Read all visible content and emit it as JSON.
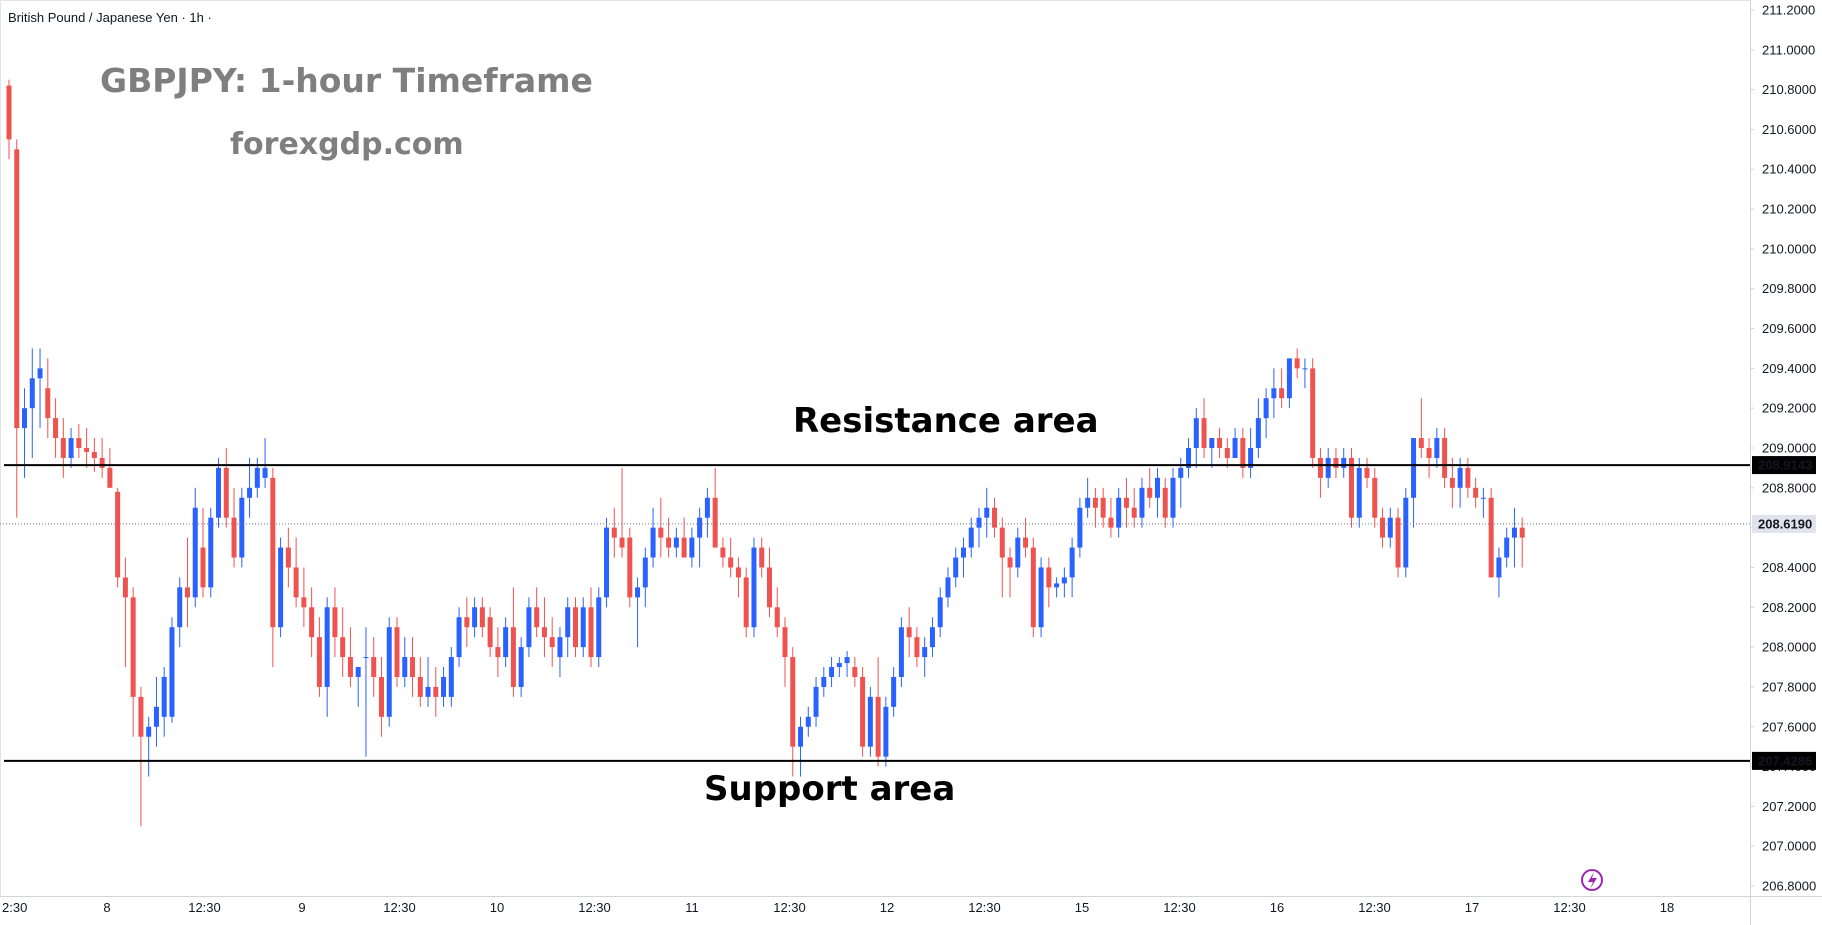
{
  "header": {
    "symbol_title": "British Pound / Japanese Yen · 1h ·",
    "chart_title": "GBPJPY: 1-hour Timeframe",
    "site": "forexgdp.com"
  },
  "chart_data": {
    "type": "candlestick",
    "title": "GBPJPY: 1-hour Timeframe",
    "ylim": [
      206.75,
      211.25
    ],
    "y_ticks": [
      "211.2000",
      "211.0000",
      "210.8000",
      "210.6000",
      "210.4000",
      "210.2000",
      "210.0000",
      "209.8000",
      "209.6000",
      "209.4000",
      "209.2000",
      "209.0000",
      "208.8000",
      "208.6000",
      "208.4000",
      "208.2000",
      "208.0000",
      "207.8000",
      "207.6000",
      "207.4000",
      "207.2000",
      "207.0000",
      "206.8000"
    ],
    "x_ticks": [
      "2:30",
      "8",
      "12:30",
      "9",
      "12:30",
      "10",
      "12:30",
      "11",
      "12:30",
      "12",
      "12:30",
      "15",
      "12:30",
      "16",
      "12:30",
      "17",
      "12:30",
      "18"
    ],
    "grid": false,
    "levels": [
      {
        "name": "Resistance area",
        "value": 208.9143,
        "label": "208.9143"
      },
      {
        "name": "Support area",
        "value": 207.4286,
        "label": "207.4286"
      }
    ],
    "current_price": {
      "value": 208.619,
      "label": "208.6190"
    },
    "colors": {
      "up": "#2962ff",
      "down": "#ef5350",
      "level": "#000000",
      "current": "#787b86"
    },
    "candles": [
      [
        210.82,
        210.85,
        210.45,
        210.55
      ],
      [
        210.5,
        210.55,
        208.65,
        209.1
      ],
      [
        209.1,
        209.3,
        208.85,
        209.2
      ],
      [
        209.2,
        209.5,
        208.95,
        209.35
      ],
      [
        209.35,
        209.5,
        209.1,
        209.4
      ],
      [
        209.3,
        209.45,
        209.05,
        209.15
      ],
      [
        209.15,
        209.25,
        208.95,
        209.05
      ],
      [
        209.05,
        209.15,
        208.85,
        208.95
      ],
      [
        208.95,
        209.1,
        208.9,
        209.05
      ],
      [
        209.05,
        209.12,
        208.95,
        209.0
      ],
      [
        209.0,
        209.1,
        208.9,
        208.98
      ],
      [
        208.98,
        209.05,
        208.88,
        208.95
      ],
      [
        208.95,
        209.05,
        208.85,
        208.9
      ],
      [
        208.9,
        209.0,
        208.8,
        208.8
      ],
      [
        208.78,
        208.8,
        208.3,
        208.35
      ],
      [
        208.35,
        208.45,
        207.9,
        208.25
      ],
      [
        208.25,
        208.3,
        207.55,
        207.75
      ],
      [
        207.75,
        207.8,
        207.1,
        207.55
      ],
      [
        207.55,
        207.65,
        207.35,
        207.6
      ],
      [
        207.6,
        207.85,
        207.5,
        207.7
      ],
      [
        207.65,
        207.9,
        207.55,
        207.85
      ],
      [
        207.65,
        208.15,
        207.62,
        208.1
      ],
      [
        208.1,
        208.35,
        208.0,
        208.3
      ],
      [
        208.3,
        208.55,
        208.1,
        208.25
      ],
      [
        208.25,
        208.8,
        208.2,
        208.7
      ],
      [
        208.5,
        208.7,
        208.25,
        208.3
      ],
      [
        208.3,
        208.7,
        208.25,
        208.65
      ],
      [
        208.65,
        208.95,
        208.6,
        208.9
      ],
      [
        208.9,
        209.0,
        208.6,
        208.65
      ],
      [
        208.65,
        208.8,
        208.4,
        208.45
      ],
      [
        208.45,
        208.8,
        208.4,
        208.75
      ],
      [
        208.75,
        208.95,
        208.65,
        208.8
      ],
      [
        208.8,
        208.95,
        208.75,
        208.9
      ],
      [
        208.85,
        209.05,
        208.8,
        208.9
      ],
      [
        208.85,
        208.9,
        207.9,
        208.1
      ],
      [
        208.1,
        208.55,
        208.05,
        208.5
      ],
      [
        208.5,
        208.6,
        208.3,
        208.4
      ],
      [
        208.4,
        208.55,
        208.2,
        208.25
      ],
      [
        208.25,
        208.4,
        208.1,
        208.2
      ],
      [
        208.2,
        208.3,
        207.95,
        208.05
      ],
      [
        208.05,
        208.15,
        207.75,
        207.8
      ],
      [
        207.8,
        208.25,
        207.65,
        208.2
      ],
      [
        208.2,
        208.3,
        207.95,
        208.05
      ],
      [
        208.05,
        208.2,
        207.85,
        207.95
      ],
      [
        207.95,
        208.1,
        207.8,
        207.85
      ],
      [
        207.85,
        207.9,
        207.7,
        207.9
      ],
      [
        207.95,
        208.1,
        207.45,
        207.95
      ],
      [
        207.95,
        208.05,
        207.75,
        207.85
      ],
      [
        207.85,
        207.95,
        207.55,
        207.65
      ],
      [
        207.65,
        208.15,
        207.6,
        208.1
      ],
      [
        208.1,
        208.15,
        207.8,
        207.85
      ],
      [
        207.85,
        208.05,
        207.8,
        207.95
      ],
      [
        207.95,
        208.05,
        207.75,
        207.85
      ],
      [
        207.85,
        207.95,
        207.7,
        207.75
      ],
      [
        207.75,
        207.95,
        207.7,
        207.8
      ],
      [
        207.8,
        207.9,
        207.65,
        207.75
      ],
      [
        207.75,
        207.9,
        207.7,
        207.85
      ],
      [
        207.75,
        208.0,
        207.7,
        207.95
      ],
      [
        207.95,
        208.2,
        207.9,
        208.15
      ],
      [
        208.15,
        208.25,
        208.0,
        208.1
      ],
      [
        208.1,
        208.25,
        208.05,
        208.2
      ],
      [
        208.2,
        208.25,
        208.05,
        208.1
      ],
      [
        208.15,
        208.2,
        207.95,
        208.0
      ],
      [
        208.0,
        208.1,
        207.85,
        207.95
      ],
      [
        207.95,
        208.15,
        207.9,
        208.1
      ],
      [
        208.1,
        208.3,
        207.75,
        207.8
      ],
      [
        207.8,
        208.05,
        207.75,
        208.0
      ],
      [
        208.0,
        208.25,
        207.95,
        208.2
      ],
      [
        208.2,
        208.3,
        208.05,
        208.1
      ],
      [
        208.1,
        208.25,
        207.95,
        208.05
      ],
      [
        208.05,
        208.15,
        207.9,
        208.0
      ],
      [
        207.95,
        208.1,
        207.85,
        208.05
      ],
      [
        208.05,
        208.25,
        207.95,
        208.2
      ],
      [
        208.2,
        208.25,
        207.95,
        208.0
      ],
      [
        208.0,
        208.25,
        207.95,
        208.2
      ],
      [
        208.2,
        208.3,
        207.9,
        207.95
      ],
      [
        207.95,
        208.3,
        207.9,
        208.25
      ],
      [
        208.25,
        208.65,
        208.2,
        208.6
      ],
      [
        208.6,
        208.7,
        208.45,
        208.55
      ],
      [
        208.55,
        208.9,
        208.45,
        208.5
      ],
      [
        208.55,
        208.6,
        208.2,
        208.25
      ],
      [
        208.25,
        208.35,
        208.0,
        208.3
      ],
      [
        208.3,
        208.5,
        208.2,
        208.45
      ],
      [
        208.45,
        208.7,
        208.4,
        208.6
      ],
      [
        208.6,
        208.75,
        208.45,
        208.55
      ],
      [
        208.55,
        208.65,
        208.45,
        208.5
      ],
      [
        208.5,
        208.6,
        208.45,
        208.55
      ],
      [
        208.55,
        208.65,
        208.45,
        208.45
      ],
      [
        208.45,
        208.6,
        208.4,
        208.55
      ],
      [
        208.55,
        208.7,
        208.4,
        208.65
      ],
      [
        208.65,
        208.8,
        208.55,
        208.75
      ],
      [
        208.75,
        208.9,
        208.5,
        208.5
      ],
      [
        208.5,
        208.55,
        208.4,
        208.45
      ],
      [
        208.45,
        208.55,
        208.35,
        208.4
      ],
      [
        208.4,
        208.45,
        208.25,
        208.35
      ],
      [
        208.35,
        208.4,
        208.05,
        208.1
      ],
      [
        208.1,
        208.55,
        208.05,
        208.5
      ],
      [
        208.5,
        208.55,
        208.35,
        208.4
      ],
      [
        208.4,
        208.5,
        208.15,
        208.2
      ],
      [
        208.2,
        208.3,
        208.05,
        208.1
      ],
      [
        208.1,
        208.15,
        207.8,
        207.95
      ],
      [
        207.95,
        208.0,
        207.35,
        207.5
      ],
      [
        207.5,
        207.65,
        207.35,
        207.6
      ],
      [
        207.6,
        207.7,
        207.55,
        207.65
      ],
      [
        207.65,
        207.85,
        207.6,
        207.8
      ],
      [
        207.8,
        207.9,
        207.75,
        207.85
      ],
      [
        207.85,
        207.95,
        207.8,
        207.9
      ],
      [
        207.9,
        207.95,
        207.85,
        207.92
      ],
      [
        207.92,
        207.98,
        207.85,
        207.95
      ],
      [
        207.9,
        207.95,
        207.8,
        207.85
      ],
      [
        207.85,
        207.9,
        207.45,
        207.5
      ],
      [
        207.5,
        207.8,
        207.45,
        207.75
      ],
      [
        207.75,
        207.95,
        207.4,
        207.45
      ],
      [
        207.45,
        207.75,
        207.4,
        207.7
      ],
      [
        207.7,
        207.9,
        207.65,
        207.85
      ],
      [
        207.85,
        208.15,
        207.8,
        208.1
      ],
      [
        208.1,
        208.2,
        207.95,
        208.05
      ],
      [
        208.05,
        208.1,
        207.9,
        207.95
      ],
      [
        207.95,
        208.05,
        207.85,
        208.0
      ],
      [
        208.0,
        208.15,
        207.95,
        208.1
      ],
      [
        208.1,
        208.3,
        208.05,
        208.25
      ],
      [
        208.25,
        208.4,
        208.2,
        208.35
      ],
      [
        208.35,
        208.5,
        208.3,
        208.45
      ],
      [
        208.45,
        208.55,
        208.35,
        208.5
      ],
      [
        208.5,
        208.65,
        208.45,
        208.6
      ],
      [
        208.6,
        208.7,
        208.5,
        208.65
      ],
      [
        208.65,
        208.8,
        208.55,
        208.7
      ],
      [
        208.7,
        208.75,
        208.55,
        208.6
      ],
      [
        208.6,
        208.65,
        208.25,
        208.45
      ],
      [
        208.45,
        208.5,
        208.25,
        208.4
      ],
      [
        208.4,
        208.6,
        208.35,
        208.55
      ],
      [
        208.55,
        208.65,
        208.45,
        208.5
      ],
      [
        208.5,
        208.55,
        208.05,
        208.1
      ],
      [
        208.1,
        208.45,
        208.05,
        208.4
      ],
      [
        208.4,
        208.45,
        208.2,
        208.3
      ],
      [
        208.3,
        208.35,
        208.25,
        208.32
      ],
      [
        208.32,
        208.4,
        208.25,
        208.35
      ],
      [
        208.35,
        208.55,
        208.25,
        208.5
      ],
      [
        208.5,
        208.75,
        208.45,
        208.7
      ],
      [
        208.7,
        208.85,
        208.65,
        208.75
      ],
      [
        208.75,
        208.8,
        208.6,
        208.7
      ],
      [
        208.75,
        208.8,
        208.6,
        208.65
      ],
      [
        208.65,
        208.75,
        208.55,
        208.6
      ],
      [
        208.6,
        208.8,
        208.55,
        208.75
      ],
      [
        208.75,
        208.85,
        208.6,
        208.7
      ],
      [
        208.7,
        208.8,
        208.6,
        208.65
      ],
      [
        208.65,
        208.85,
        208.6,
        208.8
      ],
      [
        208.8,
        208.9,
        208.7,
        208.75
      ],
      [
        208.75,
        208.9,
        208.65,
        208.85
      ],
      [
        208.8,
        208.85,
        208.6,
        208.65
      ],
      [
        208.65,
        208.9,
        208.6,
        208.85
      ],
      [
        208.85,
        208.95,
        208.7,
        208.9
      ],
      [
        208.9,
        209.05,
        208.85,
        209.0
      ],
      [
        209.0,
        209.2,
        208.9,
        209.15
      ],
      [
        209.15,
        209.25,
        208.95,
        209.0
      ],
      [
        209.0,
        209.05,
        208.9,
        209.05
      ],
      [
        209.05,
        209.1,
        208.95,
        209.0
      ],
      [
        209.0,
        209.05,
        208.9,
        208.95
      ],
      [
        208.95,
        209.1,
        208.95,
        209.05
      ],
      [
        209.05,
        209.1,
        208.85,
        208.9
      ],
      [
        208.9,
        209.1,
        208.85,
        209.0
      ],
      [
        209.0,
        209.25,
        208.95,
        209.15
      ],
      [
        209.15,
        209.3,
        209.05,
        209.25
      ],
      [
        209.25,
        209.4,
        209.15,
        209.3
      ],
      [
        209.3,
        209.4,
        209.2,
        209.25
      ],
      [
        209.25,
        209.45,
        209.2,
        209.45
      ],
      [
        209.45,
        209.5,
        209.35,
        209.4
      ],
      [
        209.4,
        209.45,
        209.3,
        209.4
      ],
      [
        209.4,
        209.45,
        208.9,
        208.95
      ],
      [
        208.95,
        209.0,
        208.75,
        208.85
      ],
      [
        208.85,
        209.0,
        208.8,
        208.95
      ],
      [
        208.95,
        209.0,
        208.85,
        208.9
      ],
      [
        208.9,
        209.0,
        208.85,
        208.95
      ],
      [
        208.95,
        209.0,
        208.6,
        208.65
      ],
      [
        208.65,
        208.95,
        208.6,
        208.9
      ],
      [
        208.9,
        208.95,
        208.8,
        208.85
      ],
      [
        208.85,
        208.9,
        208.6,
        208.65
      ],
      [
        208.65,
        208.7,
        208.5,
        208.55
      ],
      [
        208.55,
        208.7,
        208.5,
        208.65
      ],
      [
        208.65,
        208.7,
        208.35,
        208.4
      ],
      [
        208.4,
        208.8,
        208.35,
        208.75
      ],
      [
        208.75,
        209.05,
        208.6,
        209.05
      ],
      [
        209.05,
        209.25,
        208.95,
        209.0
      ],
      [
        209.0,
        209.05,
        208.85,
        208.95
      ],
      [
        208.95,
        209.1,
        208.9,
        209.05
      ],
      [
        209.05,
        209.1,
        208.8,
        208.85
      ],
      [
        208.85,
        208.95,
        208.7,
        208.8
      ],
      [
        208.8,
        208.95,
        208.7,
        208.9
      ],
      [
        208.9,
        208.95,
        208.75,
        208.8
      ],
      [
        208.8,
        208.85,
        208.7,
        208.75
      ],
      [
        208.75,
        208.8,
        208.65,
        208.75
      ],
      [
        208.75,
        208.8,
        208.35,
        208.35
      ],
      [
        208.35,
        208.5,
        208.25,
        208.45
      ],
      [
        208.45,
        208.6,
        208.4,
        208.55
      ],
      [
        208.55,
        208.7,
        208.4,
        208.6
      ],
      [
        208.6,
        208.65,
        208.4,
        208.55
      ]
    ]
  }
}
